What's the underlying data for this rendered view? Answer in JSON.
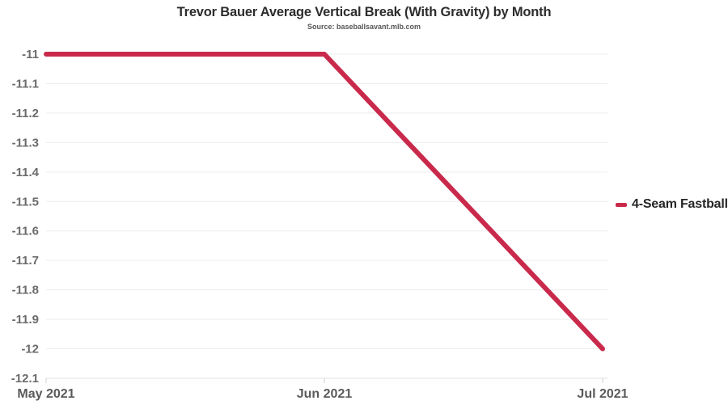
{
  "chart_data": {
    "type": "line",
    "title": "Trevor Bauer Average Vertical Break (With Gravity) by Month",
    "subtitle": "Source: baseballsavant.mlb.com",
    "x": [
      "May 2021",
      "Jun 2021",
      "Jul 2021"
    ],
    "series": [
      {
        "name": "4-Seam Fastball",
        "values": [
          -11,
          -11,
          -12
        ],
        "color": "#c92a4c"
      }
    ],
    "xlabel": "",
    "ylabel": "",
    "ylim": [
      -12.1,
      -11
    ],
    "ytick_step": 0.1,
    "yticks": [
      "-11",
      "-11.1",
      "-11.2",
      "-11.3",
      "-11.4",
      "-11.5",
      "-11.6",
      "-11.7",
      "-11.8",
      "-11.9",
      "-12",
      "-12.1"
    ],
    "grid": true,
    "legend_position": "right"
  },
  "colors": {
    "line": "#c92a4c",
    "grid": "#ececec",
    "axis_line": "#e0e0e0",
    "tick": "#cfcfcf",
    "y_label": "#6b6b6b",
    "x_label": "#5a5a5a",
    "title": "#2d2d2d",
    "subtitle": "#565656",
    "legend_text": "#262626",
    "background": "#ffffff"
  }
}
